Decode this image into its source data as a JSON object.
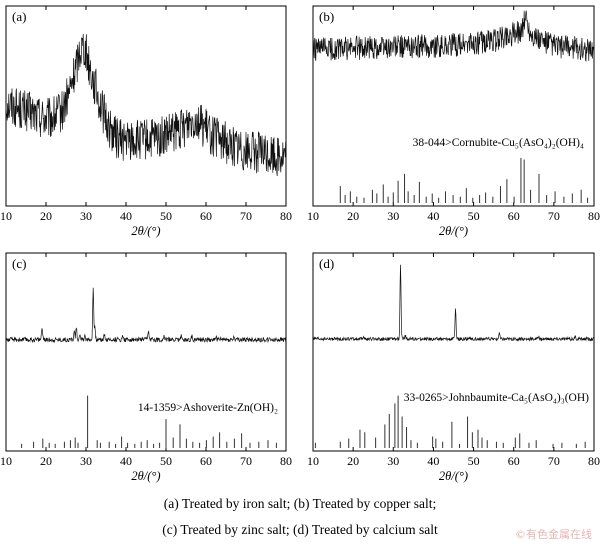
{
  "chart_data": [
    {
      "panel_label": "(a)",
      "type": "line",
      "xlabel": "2θ/(°)",
      "xlim": [
        10,
        80
      ],
      "xticks": [
        10,
        20,
        30,
        40,
        50,
        60,
        70,
        80
      ],
      "reference": "",
      "series": [
        {
          "kind": "pattern",
          "x": [
            10,
            14,
            18,
            21,
            24,
            26,
            27.5,
            28.5,
            29.5,
            30.5,
            32,
            34,
            36,
            38,
            40,
            44,
            48,
            51,
            54,
            56,
            57.5,
            59,
            62,
            66,
            70,
            75,
            80
          ],
          "y": [
            0.52,
            0.48,
            0.45,
            0.43,
            0.47,
            0.58,
            0.7,
            0.8,
            0.82,
            0.74,
            0.62,
            0.48,
            0.38,
            0.33,
            0.32,
            0.32,
            0.33,
            0.35,
            0.38,
            0.43,
            0.44,
            0.4,
            0.34,
            0.3,
            0.27,
            0.25,
            0.24
          ],
          "noise": 0.11
        }
      ]
    },
    {
      "panel_label": "(b)",
      "type": "line",
      "xlabel": "2θ/(°)",
      "xlim": [
        10,
        80
      ],
      "xticks": [
        10,
        20,
        30,
        40,
        50,
        60,
        70,
        80
      ],
      "reference": "38-044>Cornubite-Cu₅(AsO₄)₂(OH)₄",
      "series": [
        {
          "kind": "pattern",
          "x": [
            10,
            20,
            30,
            40,
            50,
            56,
            58,
            60,
            62,
            63,
            64,
            66,
            70,
            80
          ],
          "y": [
            0.6,
            0.62,
            0.63,
            0.64,
            0.66,
            0.7,
            0.74,
            0.76,
            0.8,
            0.94,
            0.78,
            0.7,
            0.64,
            0.6
          ],
          "noise": 0.12
        },
        {
          "kind": "reference-lines",
          "x": [
            16.8,
            18.0,
            19.3,
            20.9,
            22.7,
            24.8,
            25.9,
            27.5,
            28.7,
            30.0,
            31.2,
            32.8,
            33.7,
            35.2,
            36.5,
            38.2,
            39.7,
            41.3,
            43.0,
            44.9,
            46.7,
            48.2,
            49.8,
            51.5,
            53.0,
            54.8,
            56.7,
            58.3,
            60.1,
            61.8,
            62.6,
            64.2,
            66.3,
            68.2,
            70.3,
            72.5,
            74.6,
            76.8,
            78.4
          ],
          "y": [
            0.32,
            0.15,
            0.22,
            0.12,
            0.1,
            0.25,
            0.18,
            0.35,
            0.12,
            0.2,
            0.42,
            0.55,
            0.22,
            0.15,
            0.4,
            0.12,
            0.18,
            0.1,
            0.22,
            0.15,
            0.12,
            0.28,
            0.1,
            0.15,
            0.2,
            0.12,
            0.32,
            0.45,
            0.12,
            0.85,
            0.82,
            0.25,
            0.55,
            0.15,
            0.22,
            0.12,
            0.18,
            0.25,
            0.1
          ]
        }
      ]
    },
    {
      "panel_label": "(c)",
      "type": "line",
      "xlabel": "2θ/(°)",
      "xlim": [
        10,
        80
      ],
      "xticks": [
        10,
        20,
        30,
        40,
        50,
        60,
        70,
        80
      ],
      "reference": "14-1359>Ashoverite-Zn(OH)₂",
      "series": [
        {
          "kind": "pattern",
          "x": [
            10,
            80
          ],
          "y": [
            0.28,
            0.28
          ],
          "noise": 0.02,
          "peaks": [
            {
              "x": 19.0,
              "h": 0.11
            },
            {
              "x": 27.1,
              "h": 0.08
            },
            {
              "x": 27.6,
              "h": 0.1
            },
            {
              "x": 28.5,
              "h": 0.06
            },
            {
              "x": 29.7,
              "h": 0.05
            },
            {
              "x": 31.8,
              "h": 0.45
            },
            {
              "x": 32.2,
              "h": 0.1
            },
            {
              "x": 34.6,
              "h": 0.05
            },
            {
              "x": 39.2,
              "h": 0.04
            },
            {
              "x": 45.6,
              "h": 0.08
            },
            {
              "x": 49.5,
              "h": 0.04
            },
            {
              "x": 53.8,
              "h": 0.03
            },
            {
              "x": 56.5,
              "h": 0.03
            },
            {
              "x": 62.5,
              "h": 0.03
            },
            {
              "x": 67.0,
              "h": 0.025
            }
          ]
        },
        {
          "kind": "reference-lines",
          "x": [
            13.9,
            16.9,
            19.2,
            20.8,
            22.3,
            24.6,
            26.1,
            27.3,
            28.0,
            30.4,
            32.8,
            33.6,
            35.8,
            37.4,
            38.9,
            40.4,
            42.2,
            43.8,
            45.3,
            46.9,
            48.4,
            50.0,
            51.8,
            53.5,
            55.1,
            56.7,
            58.4,
            60.1,
            61.8,
            63.4,
            65.2,
            67.1,
            68.9,
            71.0,
            73.2,
            75.5,
            77.6
          ],
          "y": [
            0.08,
            0.12,
            0.18,
            0.1,
            0.08,
            0.12,
            0.15,
            0.2,
            0.1,
            1.0,
            0.15,
            0.1,
            0.12,
            0.08,
            0.22,
            0.1,
            0.08,
            0.12,
            0.15,
            0.08,
            0.1,
            0.55,
            0.2,
            0.45,
            0.18,
            0.12,
            0.1,
            0.15,
            0.22,
            0.3,
            0.12,
            0.18,
            0.28,
            0.1,
            0.12,
            0.15,
            0.1
          ]
        }
      ]
    },
    {
      "panel_label": "(d)",
      "type": "line",
      "xlabel": "2θ/(°)",
      "xlim": [
        10,
        80
      ],
      "xticks": [
        10,
        20,
        30,
        40,
        50,
        60,
        70,
        80
      ],
      "reference": "33-0265>Johnbaumite-Ca₅(AsO₄)₃(OH)",
      "series": [
        {
          "kind": "pattern",
          "x": [
            10,
            80
          ],
          "y": [
            0.26,
            0.26
          ],
          "noise": 0.015,
          "peaks": [
            {
              "x": 31.8,
              "h": 0.68
            },
            {
              "x": 45.5,
              "h": 0.28
            },
            {
              "x": 56.4,
              "h": 0.06
            },
            {
              "x": 33.0,
              "h": 0.03
            },
            {
              "x": 22.5,
              "h": 0.02
            },
            {
              "x": 66.2,
              "h": 0.02
            },
            {
              "x": 75.3,
              "h": 0.02
            }
          ]
        },
        {
          "kind": "reference-lines",
          "x": [
            10.6,
            16.8,
            18.9,
            21.7,
            22.9,
            25.6,
            27.9,
            29.0,
            30.4,
            31.2,
            32.2,
            33.3,
            34.4,
            36.0,
            39.8,
            40.6,
            42.3,
            44.6,
            46.5,
            48.5,
            49.7,
            51.1,
            52.1,
            53.4,
            55.7,
            57.4,
            60.4,
            61.5,
            63.8,
            65.6,
            69.8,
            72.0,
            75.6,
            77.8
          ],
          "y": [
            0.1,
            0.12,
            0.18,
            0.35,
            0.3,
            0.2,
            0.45,
            0.65,
            0.85,
            1.0,
            0.6,
            0.4,
            0.15,
            0.1,
            0.22,
            0.18,
            0.12,
            0.5,
            0.08,
            0.6,
            0.3,
            0.35,
            0.2,
            0.15,
            0.12,
            0.1,
            0.2,
            0.28,
            0.1,
            0.15,
            0.08,
            0.1,
            0.08,
            0.12
          ]
        }
      ]
    }
  ],
  "caption": {
    "line1": "(a) Treated by iron salt; (b) Treated by copper salt;",
    "line2": "(c) Treated by zinc salt; (d) Treated by calcium salt"
  },
  "watermark": "©有色金属在线"
}
